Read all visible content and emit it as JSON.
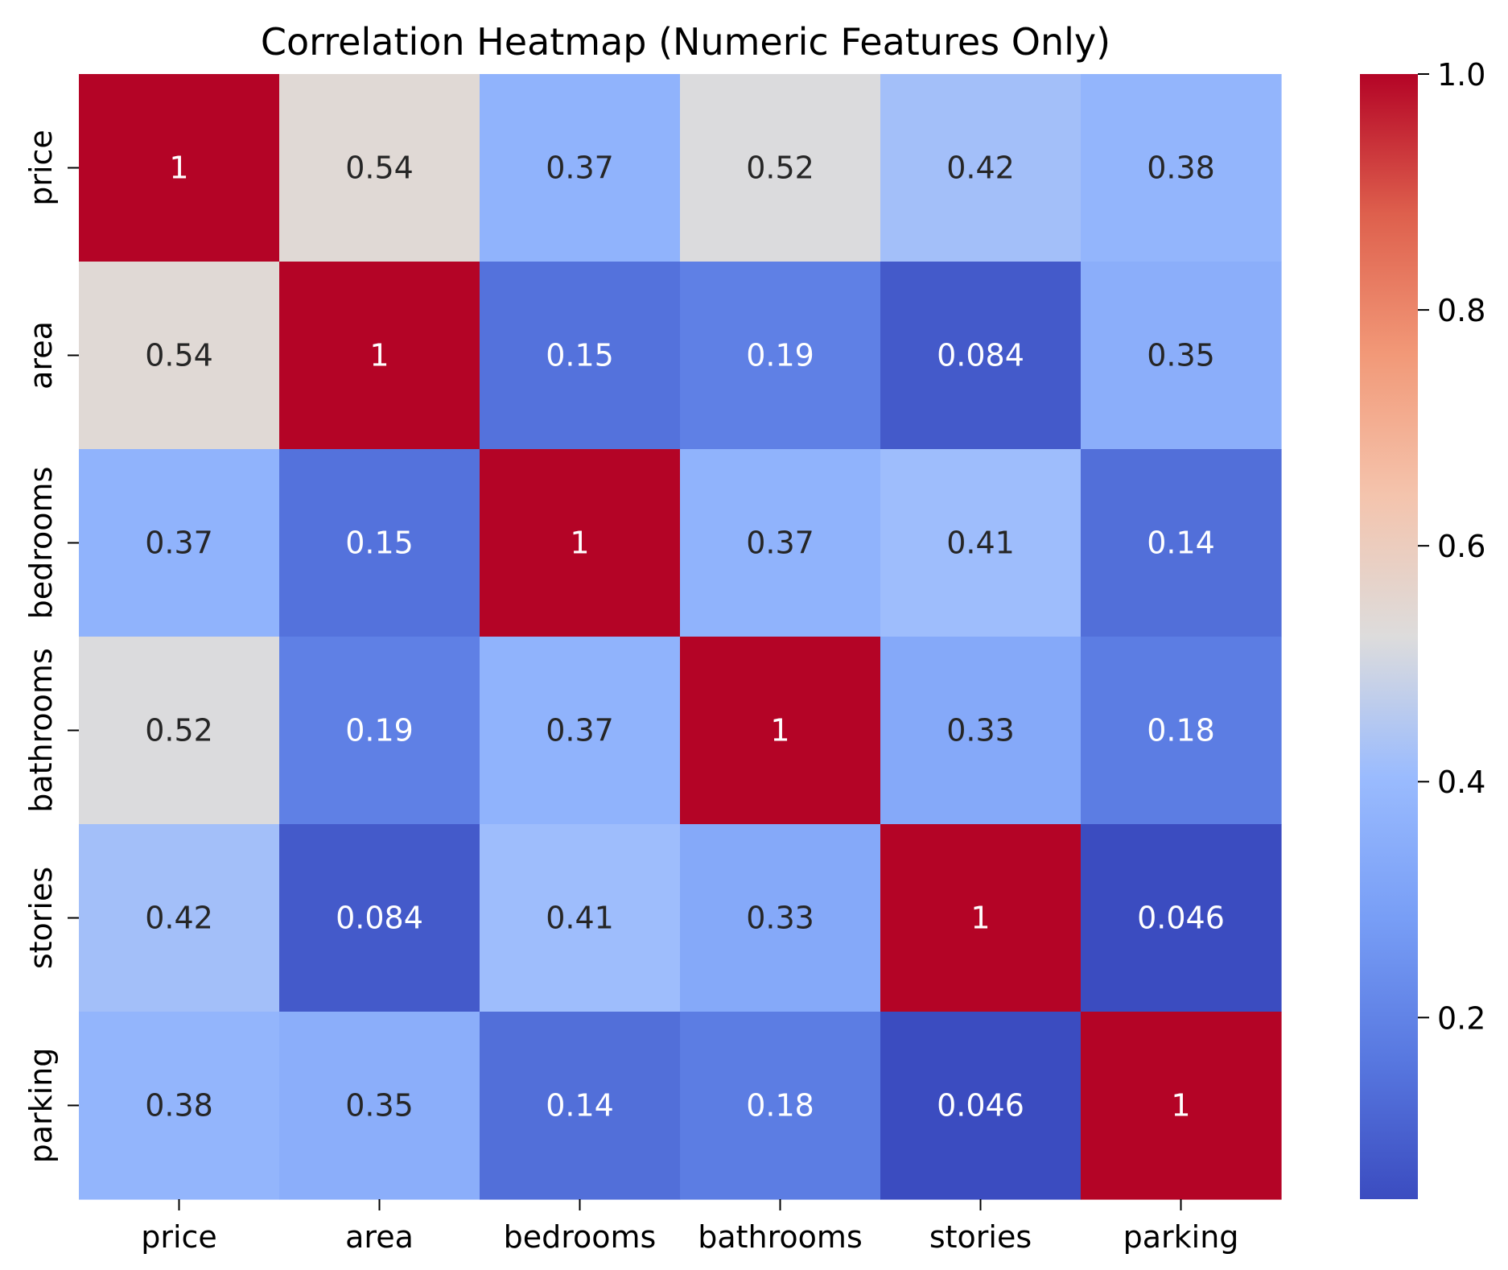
{
  "chart_data": {
    "type": "heatmap",
    "title": "Correlation Heatmap (Numeric Features Only)",
    "xlabel": "",
    "ylabel": "",
    "x_categories": [
      "price",
      "area",
      "bedrooms",
      "bathrooms",
      "stories",
      "parking"
    ],
    "y_categories": [
      "price",
      "area",
      "bedrooms",
      "bathrooms",
      "stories",
      "parking"
    ],
    "values": [
      [
        1,
        0.54,
        0.37,
        0.52,
        0.42,
        0.38
      ],
      [
        0.54,
        1,
        0.15,
        0.19,
        0.084,
        0.35
      ],
      [
        0.37,
        0.15,
        1,
        0.37,
        0.41,
        0.14
      ],
      [
        0.52,
        0.19,
        0.37,
        1,
        0.33,
        0.18
      ],
      [
        0.42,
        0.084,
        0.41,
        0.33,
        1,
        0.046
      ],
      [
        0.38,
        0.35,
        0.14,
        0.18,
        0.046,
        1
      ]
    ],
    "annotations": [
      [
        "1",
        "0.54",
        "0.37",
        "0.52",
        "0.42",
        "0.38"
      ],
      [
        "0.54",
        "1",
        "0.15",
        "0.19",
        "0.084",
        "0.35"
      ],
      [
        "0.37",
        "0.15",
        "1",
        "0.37",
        "0.41",
        "0.14"
      ],
      [
        "0.52",
        "0.19",
        "0.37",
        "1",
        "0.33",
        "0.18"
      ],
      [
        "0.42",
        "0.084",
        "0.41",
        "0.33",
        "1",
        "0.046"
      ],
      [
        "0.38",
        "0.35",
        "0.14",
        "0.18",
        "0.046",
        "1"
      ]
    ],
    "colormap": "coolwarm",
    "color_range": [
      0.046,
      1.0
    ],
    "colorbar_ticks": [
      "0.2",
      "0.4",
      "0.6",
      "0.8",
      "1.0"
    ],
    "colorbar_tick_values": [
      0.2,
      0.4,
      0.6,
      0.8,
      1.0
    ],
    "colors": {
      "cool_end": "#3b4cc0",
      "mid": "#dddcdc",
      "warm_end": "#b40426",
      "text_dark": "#262626",
      "text_light": "#ffffff"
    }
  }
}
